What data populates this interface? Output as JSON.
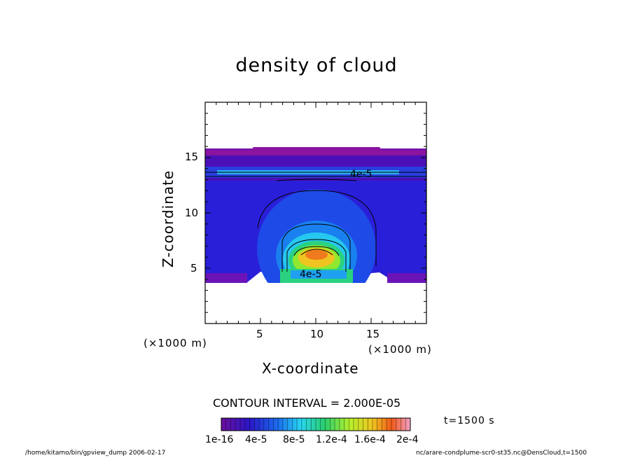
{
  "chart_data": {
    "type": "contour",
    "title": "density of cloud",
    "xlabel": "X-coordinate",
    "ylabel": "Z-coordinate",
    "x_unit": "(×1000 m)",
    "y_unit": "(×1000 m)",
    "xlim": [
      0,
      20
    ],
    "ylim": [
      0,
      20
    ],
    "x_ticks": [
      5,
      10,
      15
    ],
    "y_ticks": [
      5,
      10,
      15
    ],
    "contour_interval_text": "CONTOUR INTERVAL = 2.000E-05",
    "contour_labels": [
      "4e-5",
      "4e-5"
    ],
    "colorbar": {
      "tick_labels": [
        "1e-16",
        "4e-5",
        "8e-5",
        "1.2e-4",
        "1.6e-4",
        "2e-4"
      ],
      "range": [
        1e-16,
        0.0002
      ]
    },
    "time_label": "t=1500 s",
    "footer_left": "/home/kitamo/bin/gpview_dump  2006-02-17",
    "footer_right": "nc/arare-condplume-scr0-st35.nc@DensCloud,t=1500"
  }
}
